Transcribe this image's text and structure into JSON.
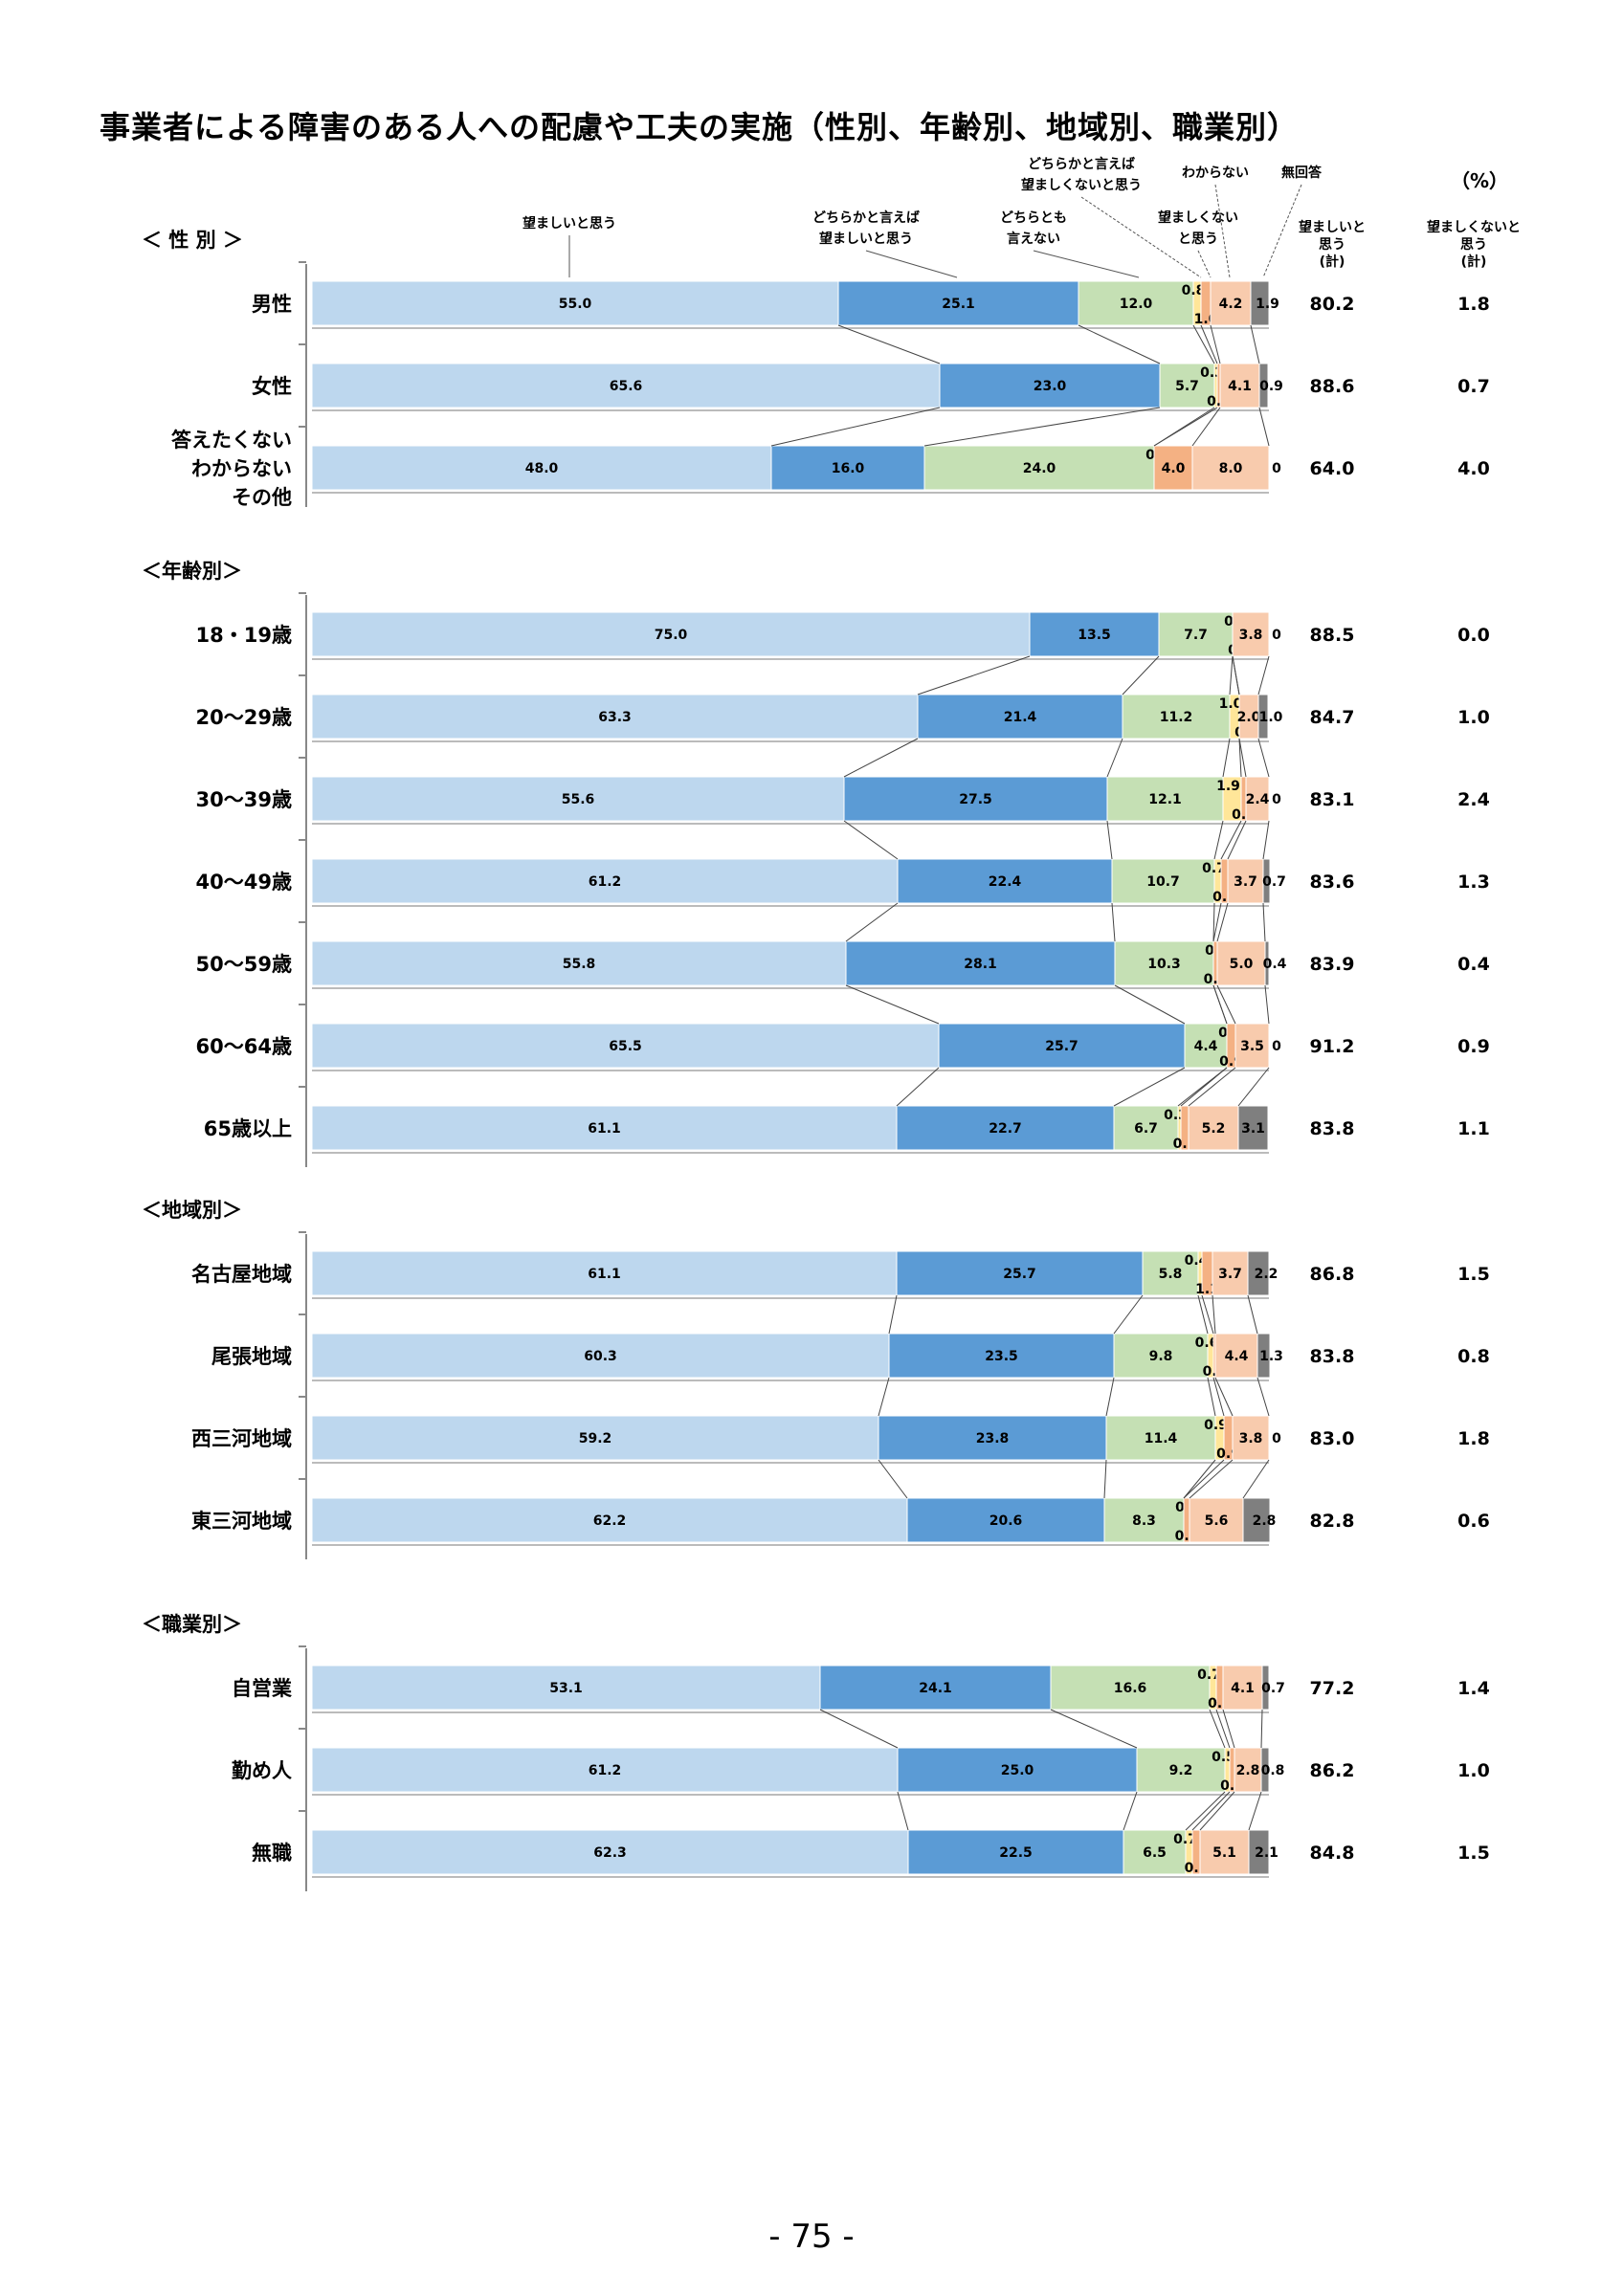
{
  "page": {
    "title": "事業者による障害のある人への配慮や工夫の実施（性別、年齢別、地域別、職業別）",
    "number": "- 75 -"
  },
  "chart_data": {
    "type": "bar",
    "orientation": "horizontal-stacked-100",
    "unit_label": "（%）",
    "legend": [
      {
        "name": "望ましいと思う",
        "color": "#bdd7ee"
      },
      {
        "name": "どちらかと言えば望ましいと思う",
        "color": "#5b9bd5"
      },
      {
        "name": "どちらとも言えない",
        "color": "#c5e0b4"
      },
      {
        "name": "どちらかと言えば望ましくないと思う",
        "color": "#ffe699"
      },
      {
        "name": "望ましくないと思う",
        "color": "#f4b183"
      },
      {
        "name": "わからない",
        "color": "#f8cbad"
      },
      {
        "name": "無回答",
        "color": "#7f7f7f"
      }
    ],
    "legend_lines": [
      [
        "望ましいと思う"
      ],
      [
        "どちらかと言えば",
        "望ましいと思う"
      ],
      [
        "どちらとも",
        "言えない"
      ],
      [
        "どちらかと言えば",
        "望ましくないと思う"
      ],
      [
        "望ましくない",
        "と思う"
      ],
      [
        "わからない"
      ],
      [
        "無回答"
      ]
    ],
    "column_headers": [
      [
        "望ましいと",
        "思う",
        "(計)"
      ],
      [
        "望ましくないと",
        "思う",
        "(計)"
      ]
    ],
    "groups": [
      {
        "label": "＜ 性 別 ＞",
        "rows": [
          {
            "label": [
              "男性"
            ],
            "values": [
              55.0,
              25.1,
              12.0,
              0.8,
              1.0,
              4.2,
              1.9
            ],
            "labels": [
              "55.0",
              "25.1",
              "12.0",
              "0.8",
              "1.0",
              "4.2",
              "1.9"
            ],
            "total_good": "80.2",
            "total_bad": "1.8"
          },
          {
            "label": [
              "女性"
            ],
            "values": [
              65.6,
              23.0,
              5.7,
              0.3,
              0.3,
              4.1,
              0.9
            ],
            "labels": [
              "65.6",
              "23.0",
              "5.7",
              "0.3",
              "0.3",
              "4.1",
              "0.9"
            ],
            "total_good": "88.6",
            "total_bad": "0.7"
          },
          {
            "label": [
              "答えたくない",
              "わからない",
              "その他"
            ],
            "values": [
              48.0,
              16.0,
              24.0,
              0,
              4.0,
              8.0,
              0
            ],
            "labels": [
              "48.0",
              "16.0",
              "24.0",
              "0",
              "4.0",
              "8.0",
              "0"
            ],
            "total_good": "64.0",
            "total_bad": "4.0"
          }
        ]
      },
      {
        "label": "＜年齢別＞",
        "rows": [
          {
            "label": [
              "18・19歳"
            ],
            "values": [
              75.0,
              13.5,
              7.7,
              0,
              0,
              3.8,
              0
            ],
            "labels": [
              "75.0",
              "13.5",
              "7.7",
              "0",
              "0",
              "3.8",
              "0"
            ],
            "total_good": "88.5",
            "total_bad": "0.0"
          },
          {
            "label": [
              "20～29歳"
            ],
            "values": [
              63.3,
              21.4,
              11.2,
              1.0,
              0,
              2.0,
              1.0
            ],
            "labels": [
              "63.3",
              "21.4",
              "11.2",
              "1.0",
              "0",
              "2.0",
              "1.0"
            ],
            "total_good": "84.7",
            "total_bad": "1.0"
          },
          {
            "label": [
              "30～39歳"
            ],
            "values": [
              55.6,
              27.5,
              12.1,
              1.9,
              0.5,
              2.4,
              0
            ],
            "labels": [
              "55.6",
              "27.5",
              "12.1",
              "1.9",
              "0.5",
              "2.4",
              "0"
            ],
            "total_good": "83.1",
            "total_bad": "2.4"
          },
          {
            "label": [
              "40～49歳"
            ],
            "values": [
              61.2,
              22.4,
              10.7,
              0.7,
              0.7,
              3.7,
              0.7
            ],
            "labels": [
              "61.2",
              "22.4",
              "10.7",
              "0.7",
              "0.7",
              "3.7",
              "0.7"
            ],
            "total_good": "83.6",
            "total_bad": "1.3"
          },
          {
            "label": [
              "50～59歳"
            ],
            "values": [
              55.8,
              28.1,
              10.3,
              0,
              0.4,
              5.0,
              0.4
            ],
            "labels": [
              "55.8",
              "28.1",
              "10.3",
              "0",
              "0.4",
              "5.0",
              "0.4"
            ],
            "total_good": "83.9",
            "total_bad": "0.4"
          },
          {
            "label": [
              "60～64歳"
            ],
            "values": [
              65.5,
              25.7,
              4.4,
              0,
              0.9,
              3.5,
              0
            ],
            "labels": [
              "65.5",
              "25.7",
              "4.4",
              "0",
              "0.9",
              "3.5",
              "0"
            ],
            "total_good": "91.2",
            "total_bad": "0.9"
          },
          {
            "label": [
              "65歳以上"
            ],
            "values": [
              61.1,
              22.7,
              6.7,
              0.3,
              0.8,
              5.2,
              3.1
            ],
            "labels": [
              "61.1",
              "22.7",
              "6.7",
              "0.3",
              "0.8",
              "5.2",
              "3.1"
            ],
            "total_good": "83.8",
            "total_bad": "1.1"
          }
        ]
      },
      {
        "label": "＜地域別＞",
        "rows": [
          {
            "label": [
              "名古屋地域"
            ],
            "values": [
              61.1,
              25.7,
              5.8,
              0.4,
              1.1,
              3.7,
              2.2
            ],
            "labels": [
              "61.1",
              "25.7",
              "5.8",
              "0.4",
              "1.1",
              "3.7",
              "2.2"
            ],
            "total_good": "86.8",
            "total_bad": "1.5"
          },
          {
            "label": [
              "尾張地域"
            ],
            "values": [
              60.3,
              23.5,
              9.8,
              0.6,
              0.2,
              4.4,
              1.3
            ],
            "labels": [
              "60.3",
              "23.5",
              "9.8",
              "0.6",
              "0.2",
              "4.4",
              "1.3"
            ],
            "total_good": "83.8",
            "total_bad": "0.8"
          },
          {
            "label": [
              "西三河地域"
            ],
            "values": [
              59.2,
              23.8,
              11.4,
              0.9,
              0.9,
              3.8,
              0
            ],
            "labels": [
              "59.2",
              "23.8",
              "11.4",
              "0.9",
              "0.9",
              "3.8",
              "0"
            ],
            "total_good": "83.0",
            "total_bad": "1.8"
          },
          {
            "label": [
              "東三河地域"
            ],
            "values": [
              62.2,
              20.6,
              8.3,
              0,
              0.6,
              5.6,
              2.8
            ],
            "labels": [
              "62.2",
              "20.6",
              "8.3",
              "0",
              "0.6",
              "5.6",
              "2.8"
            ],
            "total_good": "82.8",
            "total_bad": "0.6"
          }
        ]
      },
      {
        "label": "＜職業別＞",
        "rows": [
          {
            "label": [
              "自営業"
            ],
            "values": [
              53.1,
              24.1,
              16.6,
              0.7,
              0.7,
              4.1,
              0.7
            ],
            "labels": [
              "53.1",
              "24.1",
              "16.6",
              "0.7",
              "0.7",
              "4.1",
              "0.7"
            ],
            "total_good": "77.2",
            "total_bad": "1.4"
          },
          {
            "label": [
              "勤め人"
            ],
            "values": [
              61.2,
              25.0,
              9.2,
              0.5,
              0.5,
              2.8,
              0.8
            ],
            "labels": [
              "61.2",
              "25.0",
              "9.2",
              "0.5",
              "0.5",
              "2.8",
              "0.8"
            ],
            "total_good": "86.2",
            "total_bad": "1.0"
          },
          {
            "label": [
              "無職"
            ],
            "values": [
              62.3,
              22.5,
              6.5,
              0.7,
              0.8,
              5.1,
              2.1
            ],
            "labels": [
              "62.3",
              "22.5",
              "6.5",
              "0.7",
              "0.8",
              "5.1",
              "2.1"
            ],
            "total_good": "84.8",
            "total_bad": "1.5"
          }
        ]
      }
    ]
  }
}
